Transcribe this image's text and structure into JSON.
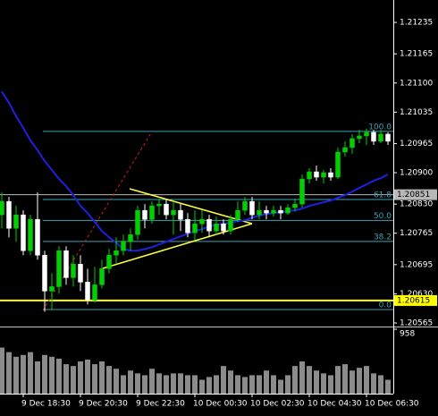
{
  "chart_data": {
    "type": "candlestick",
    "categories": [
      null,
      null,
      null,
      "9 Dec 18:30",
      null,
      null,
      null,
      null,
      null,
      null,
      null,
      "9 Dec 20:30",
      null,
      null,
      null,
      null,
      null,
      null,
      null,
      "9 Dec 22:30",
      null,
      null,
      null,
      null,
      null,
      null,
      null,
      "10 Dec 00:30",
      null,
      null,
      null,
      null,
      null,
      null,
      null,
      "10 Dec 02:30",
      null,
      null,
      null,
      null,
      null,
      null,
      null,
      "10 Dec 04:30",
      null,
      null,
      null,
      null,
      null,
      null,
      null,
      "10 Dec 06:30",
      null,
      null,
      null
    ],
    "open": [
      1.20806,
      1.20836,
      1.20776,
      1.20806,
      1.20726,
      1.20796,
      1.20716,
      1.20636,
      1.20646,
      1.20726,
      1.20666,
      1.20696,
      1.20656,
      1.20616,
      1.2065,
      1.20686,
      1.20716,
      1.20726,
      1.20746,
      1.20762,
      1.20816,
      1.20796,
      1.20826,
      1.2083,
      1.20806,
      1.20816,
      1.20796,
      1.20766,
      1.20786,
      1.20796,
      1.2077,
      1.20786,
      1.2077,
      1.20796,
      1.20816,
      1.20836,
      1.20806,
      1.20816,
      1.2081,
      1.20816,
      1.2081,
      1.20822,
      1.2083,
      1.20886,
      1.20902,
      1.2089,
      1.209,
      1.2089,
      1.20946,
      1.20956,
      1.20976,
      1.20982,
      1.2099,
      1.2097,
      1.20986
    ],
    "high": [
      1.20856,
      1.20846,
      1.20826,
      1.20816,
      1.20806,
      1.20856,
      1.20726,
      1.20676,
      1.20736,
      1.20736,
      1.20716,
      1.20716,
      1.20686,
      1.2069,
      1.20706,
      1.2073,
      1.20756,
      1.20762,
      1.20776,
      1.20826,
      1.2083,
      1.20836,
      1.20842,
      1.20842,
      1.20836,
      1.2083,
      1.2081,
      1.20816,
      1.20816,
      1.20806,
      1.20802,
      1.20796,
      1.20806,
      1.20836,
      1.20846,
      1.20846,
      1.20836,
      1.20826,
      1.20826,
      1.20826,
      1.2083,
      1.20842,
      1.20896,
      1.2091,
      1.20916,
      1.20906,
      1.2091,
      1.20956,
      1.2097,
      1.20986,
      1.20996,
      1.20998,
      1.20996,
      1.20996,
      1.2099
    ],
    "low": [
      1.20776,
      1.20756,
      1.20746,
      1.20716,
      1.20716,
      1.20706,
      1.2059,
      1.20596,
      1.2063,
      1.2065,
      1.20646,
      1.20636,
      1.20606,
      1.2061,
      1.20642,
      1.20676,
      1.20696,
      1.20716,
      1.20726,
      1.2075,
      1.20776,
      1.20786,
      1.20806,
      1.20796,
      1.20762,
      1.2077,
      1.20756,
      1.2075,
      1.20766,
      1.20756,
      1.20762,
      1.20762,
      1.20762,
      1.2079,
      1.20806,
      1.20796,
      1.20796,
      1.20796,
      1.20802,
      1.20796,
      1.20806,
      1.20814,
      1.20822,
      1.20876,
      1.20882,
      1.20876,
      1.20882,
      1.20886,
      1.20936,
      1.20942,
      1.20966,
      1.20962,
      1.20962,
      1.20966,
      1.20962
    ],
    "close": [
      1.20836,
      1.20776,
      1.20806,
      1.20726,
      1.20796,
      1.20716,
      1.20636,
      1.20646,
      1.20726,
      1.20666,
      1.20696,
      1.20656,
      1.20616,
      1.2065,
      1.20686,
      1.20716,
      1.20726,
      1.20746,
      1.20762,
      1.20816,
      1.20796,
      1.20826,
      1.2083,
      1.20806,
      1.20816,
      1.20796,
      1.20766,
      1.20786,
      1.20796,
      1.2077,
      1.20786,
      1.2077,
      1.20796,
      1.20816,
      1.20836,
      1.20806,
      1.20816,
      1.2081,
      1.20816,
      1.2081,
      1.20822,
      1.2083,
      1.20886,
      1.20902,
      1.2089,
      1.209,
      1.2089,
      1.20946,
      1.20956,
      1.20976,
      1.20982,
      1.2099,
      1.2097,
      1.20986,
      1.2097
    ],
    "up_color": "#00d000",
    "down_color": "#ffffff",
    "ylim": [
      1.20557,
      1.21285
    ],
    "yticks": [
      1.21235,
      1.21165,
      {
        "value": 1.211,
        "label": "1.21100"
      },
      1.21035,
      1.20965,
      {
        "value": 1.209,
        "label": "1.20900"
      },
      {
        "value": 1.2083,
        "label": "1.20830"
      },
      1.20765,
      1.20695,
      {
        "value": 1.2063,
        "label": "1.20630"
      },
      1.20565
    ],
    "ma": {
      "color": "#1f1fe0",
      "values": [
        1.21081,
        1.21056,
        1.21026,
        1.21,
        1.20972,
        1.2095,
        1.20926,
        1.20906,
        1.20886,
        1.2087,
        1.2085,
        1.20826,
        1.2081,
        1.2079,
        1.2077,
        1.20756,
        1.20744,
        1.2073,
        1.20726,
        1.20726,
        1.2073,
        1.20734,
        1.2074,
        1.20746,
        1.20752,
        1.20758,
        1.20764,
        1.2077,
        1.20774,
        1.2078,
        1.20784,
        1.20786,
        1.20788,
        1.20792,
        1.20794,
        1.208,
        1.20804,
        1.20808,
        1.2081,
        1.20812,
        1.20814,
        1.20816,
        1.2082,
        1.20826,
        1.2083,
        1.20834,
        1.20838,
        1.20844,
        1.2085,
        1.20858,
        1.20866,
        1.20874,
        1.20882,
        1.20888,
        1.20896
      ]
    },
    "fibonacci": {
      "color": "#3ba3b5",
      "high": 1.20992,
      "low": 1.20595,
      "levels": [
        {
          "value": 100,
          "label": "100.0"
        },
        {
          "value": 61.8,
          "label": "61.8"
        },
        {
          "value": 50,
          "label": "50.0"
        },
        38.2,
        {
          "value": 0,
          "label": "0.0"
        }
      ]
    },
    "price_lines": [
      {
        "value": 1.20851,
        "color": "#b8b8b8"
      },
      {
        "value": 1.20615,
        "color": "#ffff00"
      }
    ],
    "volume": {
      "color": "#8c8c8c",
      "ylim": [
        0,
        958
      ],
      "yticks": [
        958
      ],
      "values": [
        685,
        617,
        548,
        575,
        617,
        480,
        575,
        548,
        521,
        438,
        411,
        480,
        507,
        438,
        480,
        411,
        370,
        274,
        343,
        301,
        274,
        370,
        301,
        274,
        301,
        301,
        274,
        274,
        206,
        247,
        274,
        411,
        343,
        274,
        247,
        274,
        274,
        343,
        274,
        206,
        274,
        411,
        480,
        411,
        343,
        301,
        274,
        411,
        438,
        343,
        384,
        411,
        301,
        274,
        206
      ]
    }
  }
}
